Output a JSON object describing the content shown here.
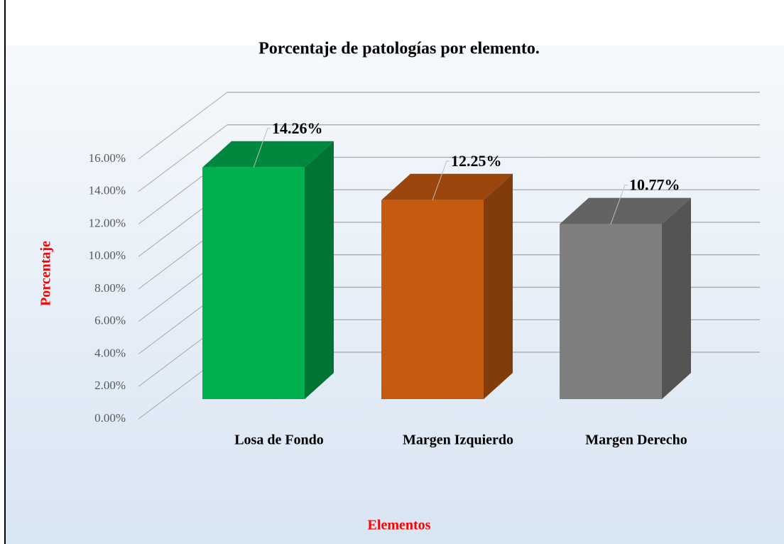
{
  "chart_data": {
    "type": "bar3d",
    "title": "Porcentaje de patologías por elemento.",
    "x_label": "Elementos",
    "y_label": "Porcentaje",
    "categories": [
      "Losa de Fondo",
      "Margen Izquierdo",
      "Margen Derecho"
    ],
    "values": [
      14.26,
      12.25,
      10.77
    ],
    "value_labels": [
      "14.26%",
      "12.25%",
      "10.77%"
    ],
    "colors": [
      "#00b04f",
      "#c55a11",
      "#7f7f7f"
    ],
    "ylim": [
      0,
      16
    ],
    "yticks": [
      {
        "value": 0,
        "label": "0.00%"
      },
      {
        "value": 2,
        "label": "2.00%"
      },
      {
        "value": 4,
        "label": "4.00%"
      },
      {
        "value": 6,
        "label": "6.00%"
      },
      {
        "value": 8,
        "label": "8.00%"
      },
      {
        "value": 10,
        "label": "10.00%"
      },
      {
        "value": 12,
        "label": "12.00%"
      },
      {
        "value": 14,
        "label": "14.00%"
      },
      {
        "value": 16,
        "label": "16.00%"
      }
    ],
    "grid": true
  }
}
